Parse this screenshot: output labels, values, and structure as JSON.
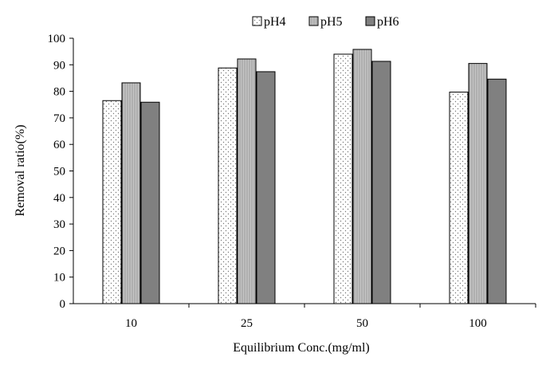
{
  "chart_data": {
    "type": "bar",
    "title": "",
    "xlabel": "Equilibrium  Conc.(mg/ml)",
    "ylabel": "Removal ratio(%)",
    "ylim": [
      0,
      100
    ],
    "yticks": [
      0,
      10,
      20,
      30,
      40,
      50,
      60,
      70,
      80,
      90,
      100
    ],
    "grid": false,
    "legend_position": "top",
    "categories": [
      "10",
      "25",
      "50",
      "100"
    ],
    "series": [
      {
        "name": "pH4",
        "values": [
          76.5,
          88.8,
          94.0,
          79.7
        ],
        "color": "#ffffff",
        "pattern": "dots"
      },
      {
        "name": "pH5",
        "values": [
          83.2,
          92.2,
          95.8,
          90.5
        ],
        "color": "#bdbdbd",
        "pattern": "vlines"
      },
      {
        "name": "pH6",
        "values": [
          75.9,
          87.4,
          91.3,
          84.6
        ],
        "color": "#808080",
        "pattern": "solid"
      }
    ]
  }
}
